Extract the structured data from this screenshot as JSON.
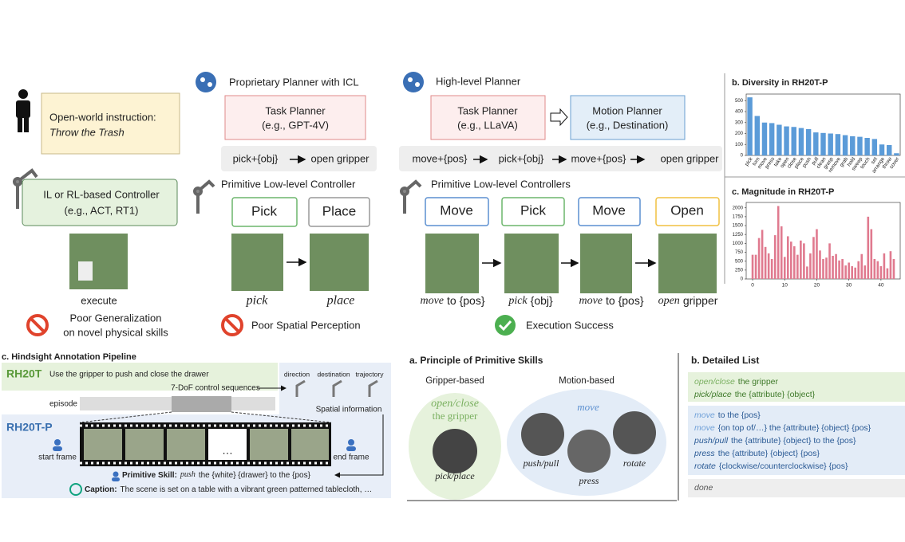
{
  "top": {
    "instruction": {
      "label": "Open-world instruction:",
      "task": "Throw the Trash"
    },
    "il_controller": {
      "title": "IL or RL-based Controller",
      "example": "(e.g., ACT, RT1)"
    },
    "execute": "execute",
    "fail": [
      "Poor Generalization",
      "on novel physical skills"
    ],
    "icl": {
      "header": "Proprietary Planner with ICL",
      "planner": [
        "Task Planner",
        "(e.g., GPT-4V)"
      ],
      "plan": [
        "pick+{obj}",
        "open gripper"
      ],
      "controller_header": "Primitive Low-level Controller",
      "skills": [
        "Pick",
        "Place"
      ],
      "captions": [
        "pick",
        "place"
      ],
      "fail": "Poor Spatial Perception"
    },
    "hl": {
      "header": "High-level Planner",
      "task_planner": [
        "Task Planner",
        "(e.g., LLaVA)"
      ],
      "motion_planner": [
        "Motion Planner",
        "(e.g., Destination)"
      ],
      "plan": [
        "move+{pos}",
        "pick+{obj}",
        "move+{pos}",
        "open gripper"
      ],
      "controller_header": "Primitive Low-level Controllers",
      "skills": [
        "Move",
        "Pick",
        "Move",
        "Open"
      ],
      "captions": [
        [
          "move",
          "to {pos}"
        ],
        [
          "pick",
          "{obj}"
        ],
        [
          "move",
          "to {pos}"
        ],
        [
          "open",
          "gripper"
        ]
      ],
      "success": "Execution Success"
    }
  },
  "chart_data": [
    {
      "type": "bar",
      "title": "b. Diversity in RH20T-P",
      "categories": [
        "pick",
        "turn",
        "move",
        "press",
        "take",
        "open",
        "close",
        "place",
        "push",
        "pull",
        "clean",
        "grasp",
        "remove",
        "grab",
        "hold",
        "sweep",
        "touch",
        "set",
        "arrange",
        "throw",
        "cover"
      ],
      "values": [
        530,
        360,
        300,
        295,
        280,
        265,
        260,
        250,
        240,
        210,
        205,
        200,
        195,
        185,
        175,
        170,
        160,
        150,
        100,
        95,
        20
      ],
      "color": "#5b9bd8",
      "ylim": [
        0,
        560
      ],
      "yticks": [
        0,
        100,
        200,
        300,
        400,
        500
      ]
    },
    {
      "type": "bar",
      "title": "c. Magnitude in RH20T-P",
      "x": [
        0,
        1,
        2,
        3,
        4,
        5,
        6,
        7,
        8,
        9,
        10,
        11,
        12,
        13,
        14,
        15,
        16,
        17,
        18,
        19,
        20,
        21,
        22,
        23,
        24,
        25,
        26,
        27,
        28,
        29,
        30,
        31,
        32,
        33,
        34,
        35,
        36,
        37,
        38,
        39,
        40,
        41,
        42,
        43,
        44
      ],
      "values": [
        680,
        680,
        1150,
        1380,
        900,
        720,
        560,
        1230,
        2050,
        1480,
        620,
        1200,
        1050,
        920,
        680,
        1080,
        1000,
        350,
        720,
        1180,
        1400,
        800,
        560,
        600,
        1000,
        650,
        700,
        520,
        560,
        380,
        460,
        360,
        320,
        500,
        700,
        380,
        1750,
        1400,
        560,
        500,
        360,
        720,
        300,
        780,
        560
      ],
      "color": "#e07a8f",
      "xlim": [
        -2,
        46
      ],
      "xticks": [
        0,
        10,
        20,
        30,
        40
      ],
      "ylim": [
        0,
        2150
      ],
      "yticks": [
        0,
        250,
        500,
        750,
        1000,
        1250,
        1500,
        1750,
        2000
      ]
    }
  ],
  "pipeline": {
    "title": "c. Hindsight Annotation Pipeline",
    "rh20t": "RH20T",
    "instruction": "Use the gripper to push and close the drawer",
    "control": "7-DoF control sequences",
    "episode": "episode",
    "spatial_labels": [
      "direction",
      "destination",
      "trajectory"
    ],
    "spatial": "Spatial information",
    "rh20tp": "RH20T-P",
    "start": "start frame",
    "end": "end frame",
    "ellipsis": "…",
    "skill_label": "Primitive Skill:",
    "skill_verb": "push",
    "skill_rest": "the {white} {drawer} to the {pos}",
    "caption_label": "Caption:",
    "caption": "The scene is set on a table with a vibrant green patterned tablecloth, …"
  },
  "principle": {
    "title": "a. Principle of Primitive Skills",
    "gripper": "Gripper-based",
    "motion": "Motion-based",
    "gripper_skills": [
      "open/close",
      "the gripper",
      "pick/place"
    ],
    "motion_skills": [
      "move",
      "push/pull",
      "press",
      "rotate"
    ]
  },
  "list": {
    "title": "b. Detailed List",
    "groups": [
      [
        {
          "verb": "open/close",
          "rest": "the gripper"
        },
        {
          "verb": "pick/place",
          "rest": "the {attribute} {object}"
        }
      ],
      [
        {
          "verb": "move",
          "rest": "to the {pos}"
        },
        {
          "verb": "move",
          "rest": "{on top of/…} the {attribute} {object} {pos}"
        },
        {
          "verb": "push/pull",
          "rest": "the {attribute} {object} to the {pos}"
        },
        {
          "verb": "press",
          "rest": "the {attribute} {object} {pos}"
        },
        {
          "verb": "rotate",
          "rest": "{clockwise/counterclockwise} {pos}"
        }
      ],
      [
        {
          "verb": "done"
        }
      ]
    ]
  }
}
